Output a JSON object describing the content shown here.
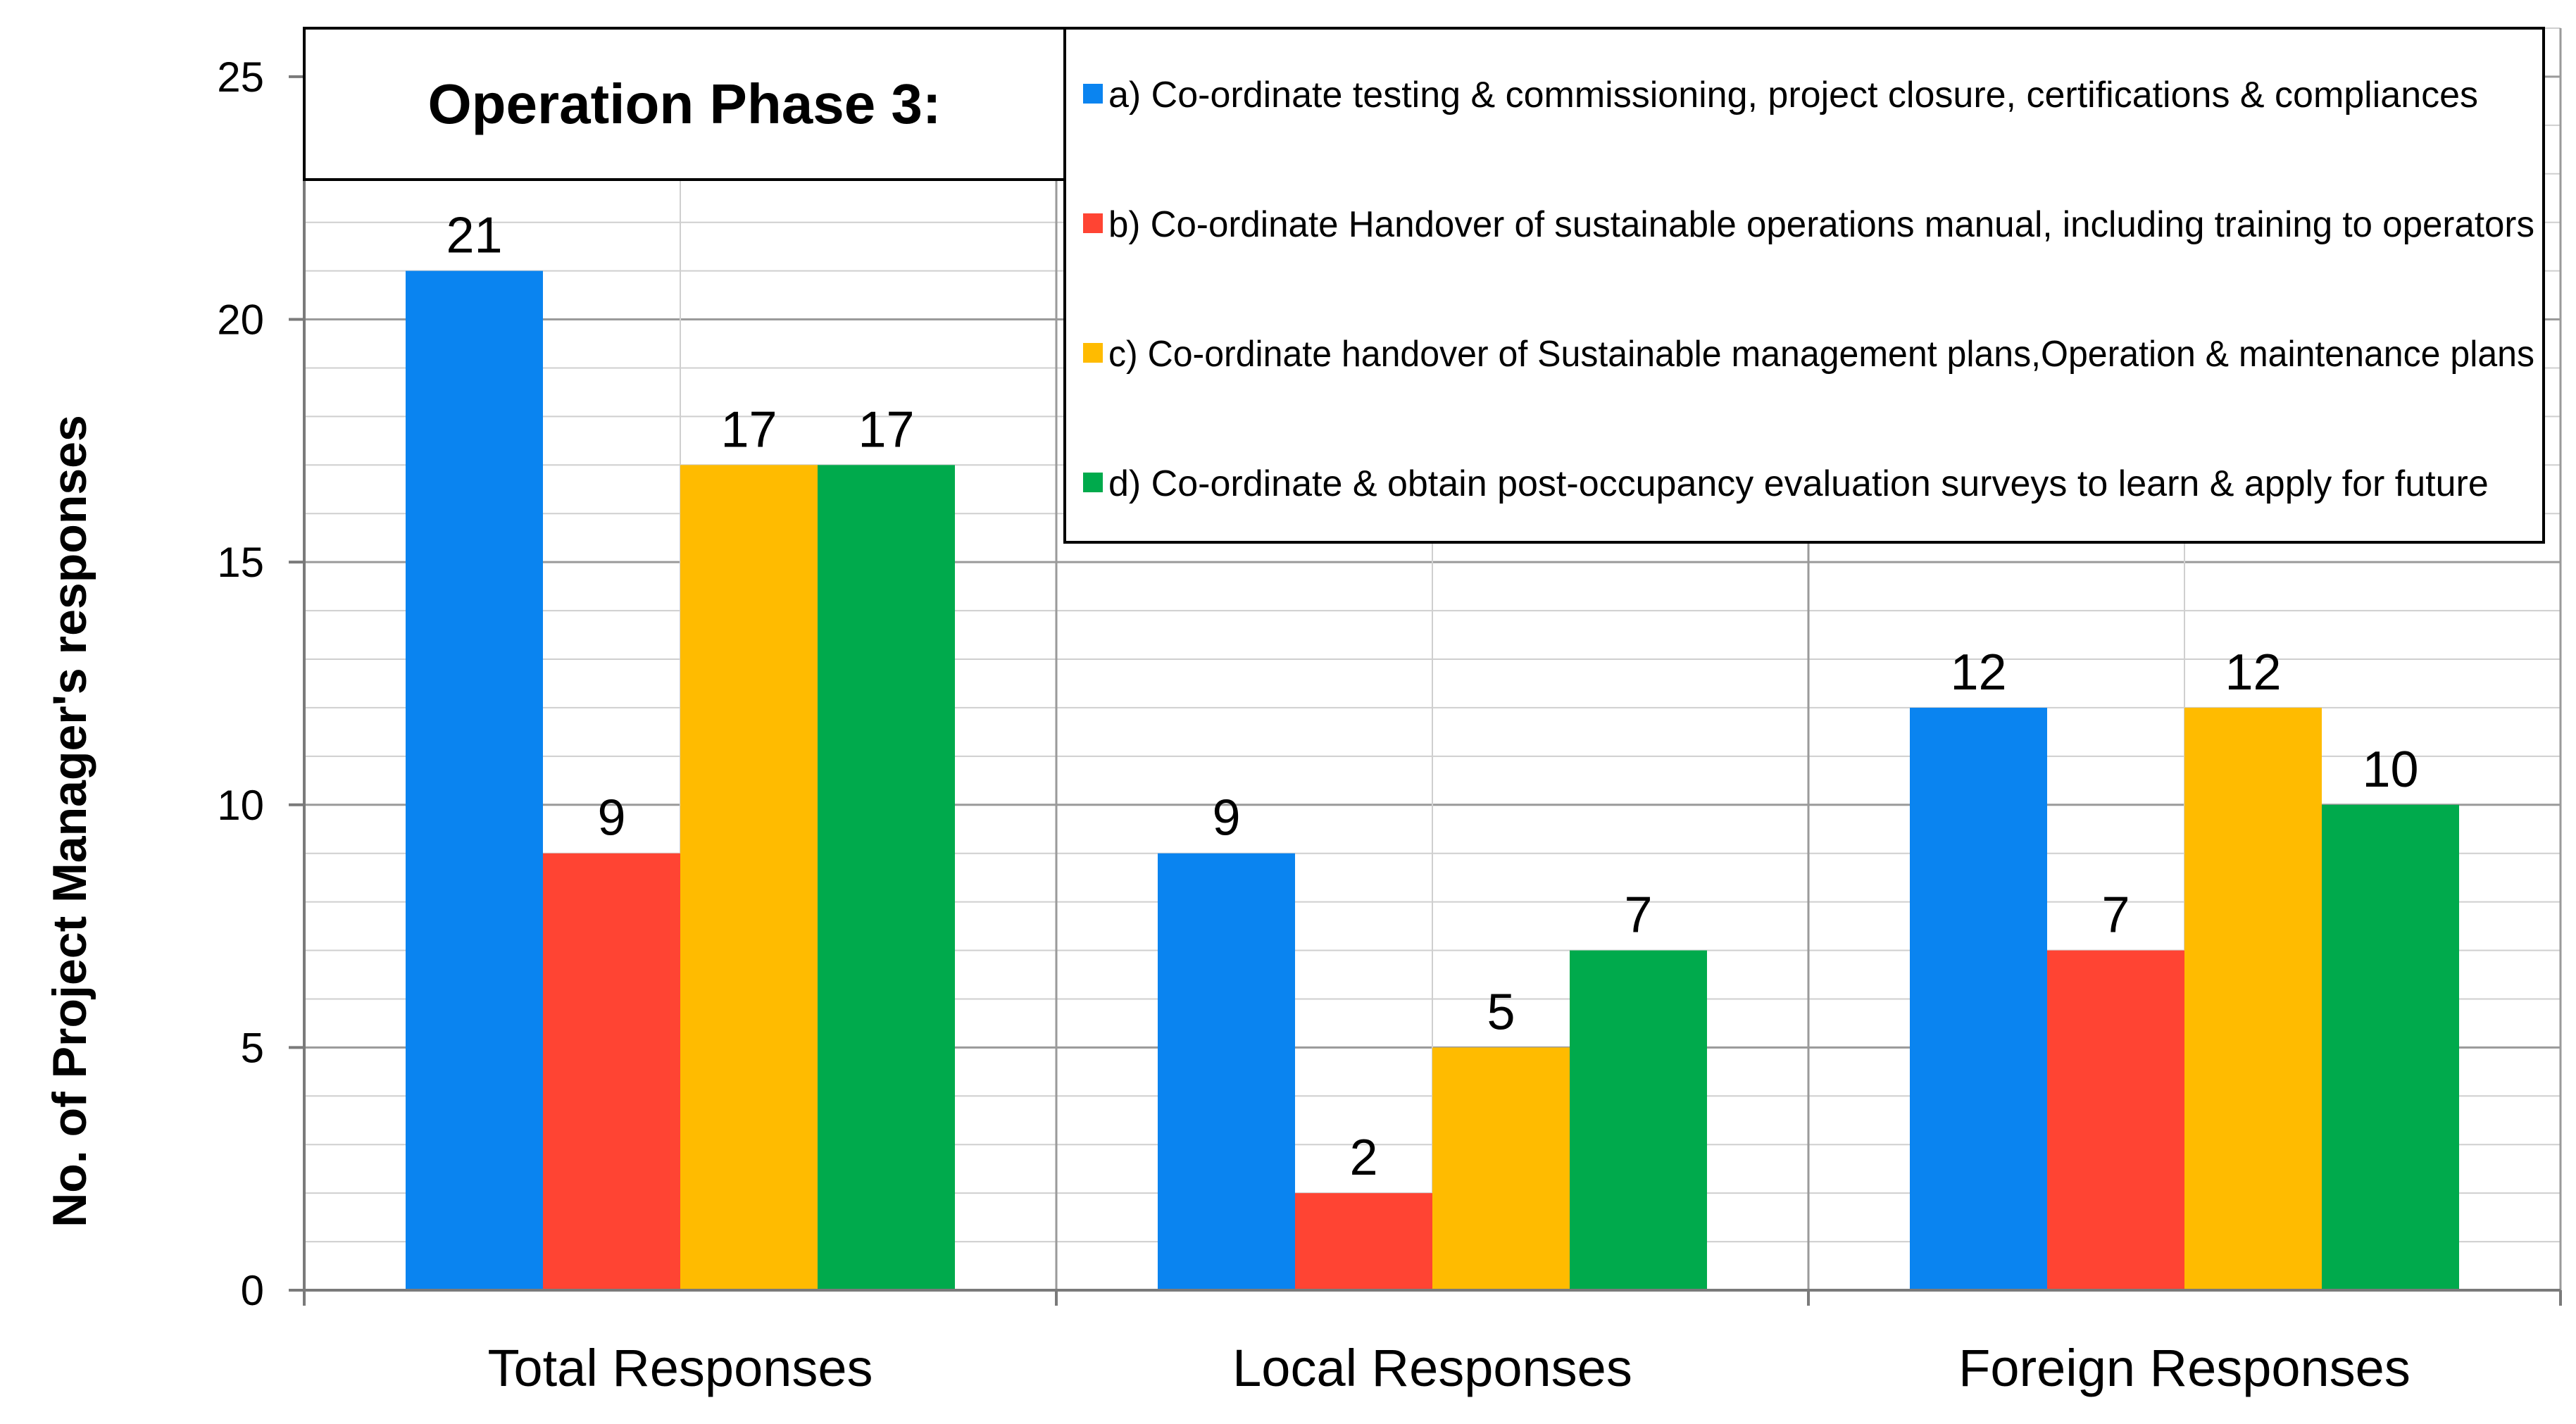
{
  "chart_data": {
    "type": "bar",
    "title": "Operation Phase 3:",
    "xlabel": "",
    "ylabel": "No.  of Project Manager's responses",
    "ylim": [
      0,
      26
    ],
    "yticks": [
      0,
      5,
      10,
      15,
      20,
      25
    ],
    "grid": true,
    "legend_position": "top-right",
    "categories": [
      "Total Responses",
      "Local Responses",
      "Foreign Responses"
    ],
    "series": [
      {
        "name": "a) Co-ordinate testing & commissioning, project closure, certifications & compliances",
        "color": "#0A84F0",
        "values": [
          21,
          9,
          12
        ]
      },
      {
        "name": "b) Co-ordinate Handover of sustainable operations manual, including training to operators",
        "color": "#FF4433",
        "values": [
          9,
          2,
          7
        ]
      },
      {
        "name": "c) Co-ordinate handover of Sustainable management plans,Operation & maintenance plans",
        "color": "#FFBB00",
        "values": [
          17,
          5,
          12
        ]
      },
      {
        "name": "d) Co-ordinate & obtain post-occupancy evaluation surveys to learn & apply for future",
        "color": "#00AA4C",
        "values": [
          17,
          7,
          10
        ]
      }
    ]
  }
}
